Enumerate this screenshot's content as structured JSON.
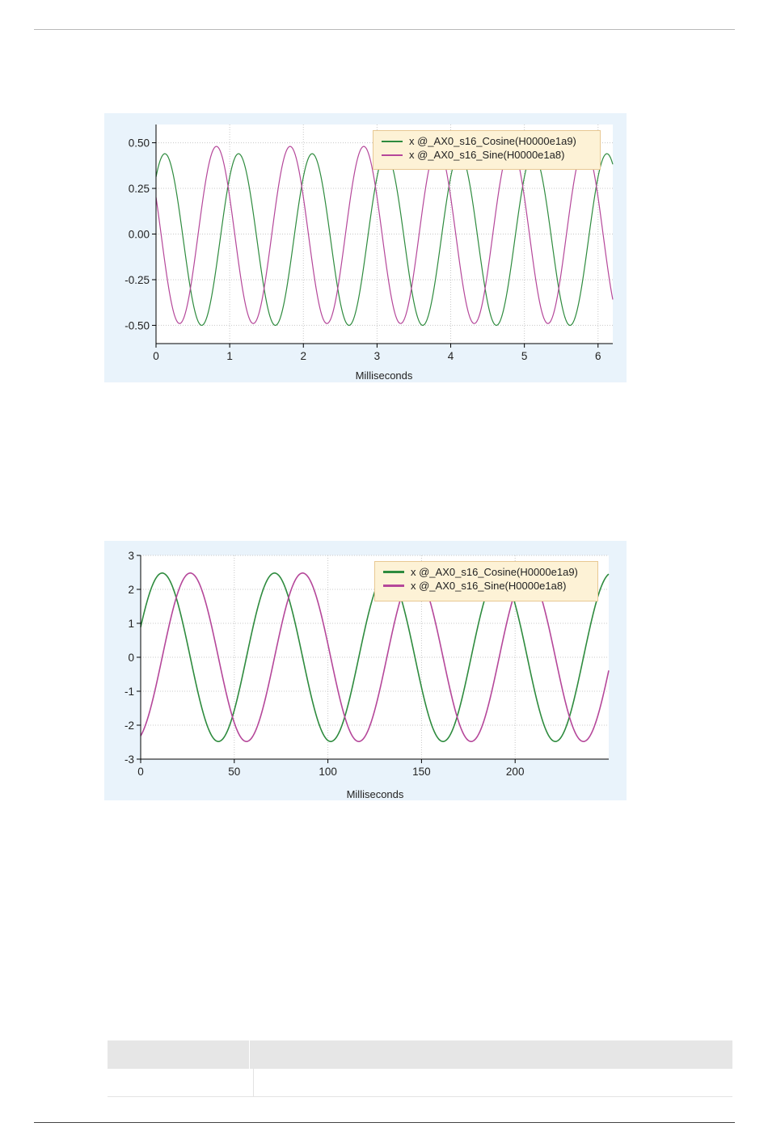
{
  "colors": {
    "cosine": "#2e8b3e",
    "sine": "#b5479a",
    "panel_bg": "#e9f3fb",
    "legend_bg": "#fdf2d6",
    "grid": "#c8c8c8"
  },
  "chart_data": [
    {
      "type": "line",
      "title": "",
      "xlabel": "Milliseconds",
      "ylabel": "",
      "xlim": [
        0,
        6.2
      ],
      "ylim": [
        -0.6,
        0.6
      ],
      "x_ticks": [
        0,
        1,
        2,
        3,
        4,
        5,
        6
      ],
      "x_tick_labels": [
        "0",
        "1",
        "2",
        "3",
        "4",
        "5",
        "6"
      ],
      "y_ticks": [
        0.5,
        0.25,
        0,
        -0.25,
        -0.5
      ],
      "y_tick_labels": [
        "0.50",
        "0.25",
        "0.00",
        "-0.25",
        "-0.50"
      ],
      "grid": true,
      "legend_position": "top-right",
      "series": [
        {
          "name": "x @_AX0_s16_Cosine(H0000e1a9)",
          "color": "#2e8b3e",
          "amplitude": 0.47,
          "offset": -0.03,
          "period": 1.0,
          "peak_x": 0.12,
          "x_start": 0,
          "x_end": 6.2
        },
        {
          "name": "x @_AX0_s16_Sine(H0000e1a8)",
          "color": "#b5479a",
          "amplitude": 0.485,
          "offset": -0.005,
          "period": 1.0,
          "peak_x": 0.82,
          "x_start": 0,
          "x_end": 6.2
        }
      ]
    },
    {
      "type": "line",
      "title": "",
      "xlabel": "Milliseconds",
      "ylabel": "",
      "xlim": [
        0,
        250
      ],
      "ylim": [
        -3,
        3
      ],
      "x_ticks": [
        0,
        50,
        100,
        150,
        200
      ],
      "x_tick_labels": [
        "0",
        "50",
        "100",
        "150",
        "200"
      ],
      "y_ticks": [
        3,
        2,
        1,
        0,
        -1,
        -2,
        -3
      ],
      "y_tick_labels": [
        "3",
        "2",
        "1",
        "0",
        "-1",
        "-2",
        "-3"
      ],
      "grid": true,
      "legend_position": "top-right",
      "series": [
        {
          "name": "x @_AX0_s16_Cosine(H0000e1a9)",
          "color": "#2e8b3e",
          "amplitude": 2.48,
          "offset": 0,
          "period": 60,
          "peak_x": 11.5,
          "x_start": 0,
          "x_end": 250
        },
        {
          "name": "x @_AX0_s16_Sine(H0000e1a8)",
          "color": "#b5479a",
          "amplitude": 2.48,
          "offset": 0,
          "period": 60,
          "peak_x": 26.5,
          "x_start": 0,
          "x_end": 250
        }
      ]
    }
  ]
}
